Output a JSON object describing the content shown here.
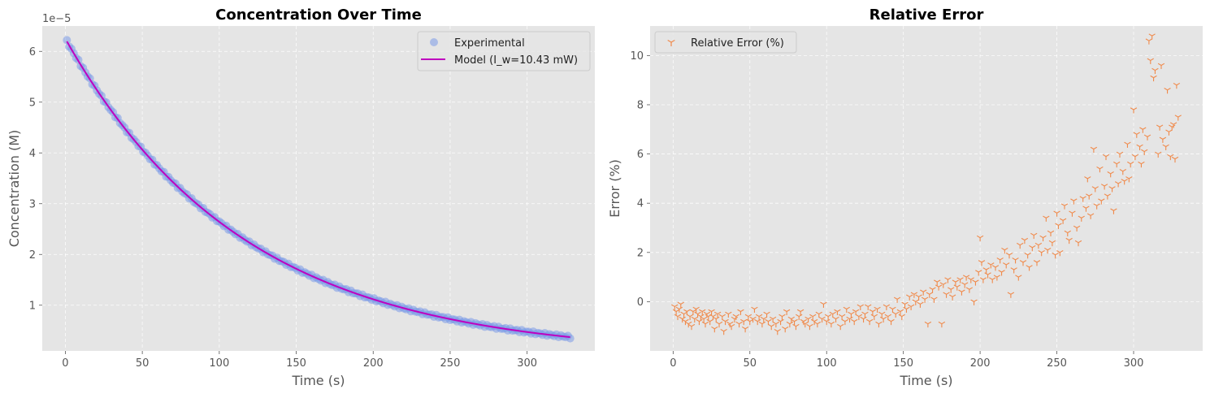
{
  "chart_data": [
    {
      "type": "scatter+line",
      "title": "Concentration Over Time",
      "xlabel": "Time (s)",
      "ylabel": "Concentration (M)",
      "y_offset_label": "1e−5",
      "xlim": [
        -15,
        344
      ],
      "ylim": [
        0.1,
        6.5
      ],
      "xticks": [
        0,
        50,
        100,
        150,
        200,
        250,
        300
      ],
      "xtick_labels": [
        "0",
        "50",
        "100",
        "150",
        "200",
        "250",
        "300"
      ],
      "yticks": [
        1,
        2,
        3,
        4,
        5,
        6
      ],
      "ytick_labels": [
        "1",
        "2",
        "3",
        "4",
        "5",
        "6"
      ],
      "grid": true,
      "legend_position": "top-right",
      "series": [
        {
          "name": "Experimental",
          "kind": "scatter",
          "color": "#7b9be8",
          "model": {
            "type": "exp_decay",
            "a": 6.25,
            "k": 0.00861,
            "x_start": 1,
            "x_end": 328,
            "step": 1.5
          }
        },
        {
          "name": "Model (I_w=10.43 mW)",
          "kind": "line",
          "color": "#bf00bf",
          "model": {
            "type": "exp_decay",
            "a": 6.25,
            "k": 0.00861,
            "x_start": 1,
            "x_end": 328
          }
        }
      ]
    },
    {
      "type": "scatter",
      "title": "Relative Error",
      "xlabel": "Time (s)",
      "ylabel": "Error (%)",
      "xlim": [
        -15,
        345
      ],
      "ylim": [
        -2,
        11.2
      ],
      "xticks": [
        0,
        50,
        100,
        150,
        200,
        250,
        300
      ],
      "xtick_labels": [
        "0",
        "50",
        "100",
        "150",
        "200",
        "250",
        "300"
      ],
      "yticks": [
        0,
        2,
        4,
        6,
        8,
        10
      ],
      "ytick_labels": [
        "0",
        "2",
        "4",
        "6",
        "8",
        "10"
      ],
      "grid": true,
      "legend_position": "top-left",
      "series": [
        {
          "name": "Relative Error (%)",
          "kind": "scatter",
          "marker": "tri_down",
          "color": "#f08a4b",
          "points": [
            [
              1,
              -0.2
            ],
            [
              2,
              -0.4
            ],
            [
              3,
              -0.6
            ],
            [
              4,
              -0.3
            ],
            [
              5,
              -0.1
            ],
            [
              6,
              -0.7
            ],
            [
              7,
              -0.5
            ],
            [
              8,
              -0.8
            ],
            [
              9,
              -0.4
            ],
            [
              10,
              -0.9
            ],
            [
              11,
              -0.6
            ],
            [
              12,
              -1.0
            ],
            [
              13,
              -0.4
            ],
            [
              14,
              -0.7
            ],
            [
              15,
              -0.3
            ],
            [
              16,
              -0.5
            ],
            [
              17,
              -0.8
            ],
            [
              18,
              -0.6
            ],
            [
              19,
              -0.4
            ],
            [
              20,
              -0.7
            ],
            [
              21,
              -0.9
            ],
            [
              22,
              -0.5
            ],
            [
              23,
              -0.6
            ],
            [
              24,
              -0.8
            ],
            [
              25,
              -0.4
            ],
            [
              26,
              -0.6
            ],
            [
              27,
              -1.1
            ],
            [
              28,
              -0.7
            ],
            [
              29,
              -0.5
            ],
            [
              30,
              -0.9
            ],
            [
              32,
              -0.6
            ],
            [
              33,
              -1.2
            ],
            [
              34,
              -0.8
            ],
            [
              36,
              -0.5
            ],
            [
              37,
              -0.9
            ],
            [
              38,
              -1.0
            ],
            [
              40,
              -0.7
            ],
            [
              41,
              -0.6
            ],
            [
              43,
              -0.9
            ],
            [
              44,
              -0.4
            ],
            [
              46,
              -0.8
            ],
            [
              47,
              -1.1
            ],
            [
              49,
              -0.6
            ],
            [
              50,
              -0.8
            ],
            [
              52,
              -0.7
            ],
            [
              53,
              -0.3
            ],
            [
              55,
              -0.8
            ],
            [
              56,
              -0.6
            ],
            [
              58,
              -0.9
            ],
            [
              59,
              -0.7
            ],
            [
              61,
              -0.5
            ],
            [
              62,
              -0.8
            ],
            [
              64,
              -1.0
            ],
            [
              65,
              -0.7
            ],
            [
              67,
              -0.9
            ],
            [
              68,
              -1.2
            ],
            [
              70,
              -0.8
            ],
            [
              71,
              -0.6
            ],
            [
              73,
              -1.1
            ],
            [
              74,
              -0.4
            ],
            [
              76,
              -0.9
            ],
            [
              77,
              -0.7
            ],
            [
              79,
              -0.8
            ],
            [
              80,
              -1.0
            ],
            [
              82,
              -0.6
            ],
            [
              83,
              -0.4
            ],
            [
              85,
              -0.8
            ],
            [
              86,
              -0.9
            ],
            [
              88,
              -0.7
            ],
            [
              89,
              -1.0
            ],
            [
              91,
              -0.6
            ],
            [
              92,
              -0.8
            ],
            [
              94,
              -0.9
            ],
            [
              95,
              -0.5
            ],
            [
              97,
              -0.7
            ],
            [
              98,
              -0.1
            ],
            [
              100,
              -0.8
            ],
            [
              101,
              -0.6
            ],
            [
              103,
              -0.9
            ],
            [
              104,
              -0.5
            ],
            [
              106,
              -0.7
            ],
            [
              107,
              -0.4
            ],
            [
              109,
              -1.0
            ],
            [
              110,
              -0.6
            ],
            [
              112,
              -0.8
            ],
            [
              113,
              -0.3
            ],
            [
              115,
              -0.7
            ],
            [
              116,
              -0.5
            ],
            [
              118,
              -0.8
            ],
            [
              119,
              -0.4
            ],
            [
              121,
              -0.6
            ],
            [
              122,
              -0.2
            ],
            [
              124,
              -0.7
            ],
            [
              125,
              -0.5
            ],
            [
              127,
              -0.2
            ],
            [
              128,
              -0.8
            ],
            [
              130,
              -0.4
            ],
            [
              131,
              -0.6
            ],
            [
              133,
              -0.3
            ],
            [
              134,
              -0.9
            ],
            [
              136,
              -0.5
            ],
            [
              137,
              -0.7
            ],
            [
              139,
              -0.2
            ],
            [
              140,
              -0.6
            ],
            [
              142,
              -0.8
            ],
            [
              143,
              -0.3
            ],
            [
              145,
              -0.5
            ],
            [
              146,
              0.1
            ],
            [
              148,
              -0.4
            ],
            [
              149,
              -0.6
            ],
            [
              151,
              -0.1
            ],
            [
              152,
              -0.3
            ],
            [
              154,
              0.2
            ],
            [
              155,
              -0.2
            ],
            [
              157,
              0.3
            ],
            [
              158,
              0.0
            ],
            [
              160,
              0.2
            ],
            [
              161,
              -0.1
            ],
            [
              163,
              0.4
            ],
            [
              164,
              0.1
            ],
            [
              166,
              -0.9
            ],
            [
              167,
              0.3
            ],
            [
              169,
              0.5
            ],
            [
              170,
              0.1
            ],
            [
              172,
              0.8
            ],
            [
              173,
              0.6
            ],
            [
              175,
              -0.9
            ],
            [
              176,
              0.7
            ],
            [
              178,
              0.3
            ],
            [
              179,
              0.9
            ],
            [
              181,
              0.5
            ],
            [
              182,
              0.2
            ],
            [
              184,
              0.8
            ],
            [
              185,
              0.6
            ],
            [
              187,
              0.9
            ],
            [
              188,
              0.4
            ],
            [
              190,
              0.7
            ],
            [
              191,
              1.0
            ],
            [
              193,
              0.5
            ],
            [
              194,
              0.9
            ],
            [
              196,
              0.0
            ],
            [
              197,
              0.8
            ],
            [
              199,
              1.2
            ],
            [
              200,
              2.6
            ],
            [
              201,
              1.6
            ],
            [
              202,
              0.9
            ],
            [
              204,
              1.3
            ],
            [
              205,
              1.1
            ],
            [
              207,
              1.5
            ],
            [
              208,
              0.9
            ],
            [
              210,
              1.4
            ],
            [
              211,
              1.0
            ],
            [
              213,
              1.7
            ],
            [
              214,
              1.2
            ],
            [
              216,
              2.1
            ],
            [
              217,
              1.5
            ],
            [
              219,
              1.9
            ],
            [
              220,
              0.3
            ],
            [
              222,
              1.3
            ],
            [
              223,
              1.7
            ],
            [
              225,
              1.0
            ],
            [
              226,
              2.3
            ],
            [
              228,
              1.6
            ],
            [
              229,
              2.5
            ],
            [
              231,
              1.9
            ],
            [
              232,
              1.4
            ],
            [
              234,
              2.2
            ],
            [
              235,
              2.7
            ],
            [
              237,
              1.6
            ],
            [
              238,
              2.3
            ],
            [
              240,
              2.0
            ],
            [
              241,
              2.6
            ],
            [
              243,
              3.4
            ],
            [
              244,
              2.1
            ],
            [
              246,
              2.8
            ],
            [
              247,
              2.4
            ],
            [
              249,
              1.9
            ],
            [
              250,
              3.6
            ],
            [
              251,
              3.1
            ],
            [
              252,
              2.0
            ],
            [
              254,
              3.3
            ],
            [
              255,
              3.9
            ],
            [
              257,
              2.8
            ],
            [
              258,
              2.5
            ],
            [
              260,
              3.6
            ],
            [
              261,
              4.1
            ],
            [
              263,
              3.0
            ],
            [
              264,
              2.4
            ],
            [
              266,
              3.4
            ],
            [
              267,
              4.2
            ],
            [
              269,
              3.8
            ],
            [
              270,
              5.0
            ],
            [
              271,
              4.3
            ],
            [
              272,
              3.5
            ],
            [
              274,
              6.2
            ],
            [
              275,
              4.6
            ],
            [
              276,
              3.9
            ],
            [
              278,
              5.4
            ],
            [
              279,
              4.1
            ],
            [
              281,
              4.7
            ],
            [
              282,
              5.9
            ],
            [
              283,
              4.3
            ],
            [
              285,
              5.2
            ],
            [
              286,
              4.6
            ],
            [
              287,
              3.7
            ],
            [
              289,
              5.6
            ],
            [
              290,
              4.8
            ],
            [
              291,
              6.0
            ],
            [
              293,
              5.3
            ],
            [
              294,
              4.9
            ],
            [
              296,
              6.4
            ],
            [
              297,
              5.0
            ],
            [
              298,
              5.6
            ],
            [
              300,
              7.8
            ],
            [
              301,
              5.9
            ],
            [
              302,
              6.8
            ],
            [
              304,
              6.3
            ],
            [
              305,
              5.6
            ],
            [
              306,
              7.0
            ],
            [
              307,
              6.1
            ],
            [
              309,
              6.7
            ],
            [
              310,
              10.6
            ],
            [
              311,
              9.8
            ],
            [
              312,
              10.8
            ],
            [
              313,
              9.1
            ],
            [
              314,
              9.4
            ],
            [
              316,
              6.0
            ],
            [
              317,
              7.1
            ],
            [
              318,
              9.6
            ],
            [
              319,
              6.6
            ],
            [
              321,
              6.3
            ],
            [
              322,
              8.6
            ],
            [
              323,
              6.9
            ],
            [
              324,
              5.9
            ],
            [
              325,
              7.1
            ],
            [
              326,
              7.2
            ],
            [
              327,
              5.8
            ],
            [
              328,
              8.8
            ],
            [
              329,
              7.5
            ]
          ]
        }
      ]
    }
  ]
}
